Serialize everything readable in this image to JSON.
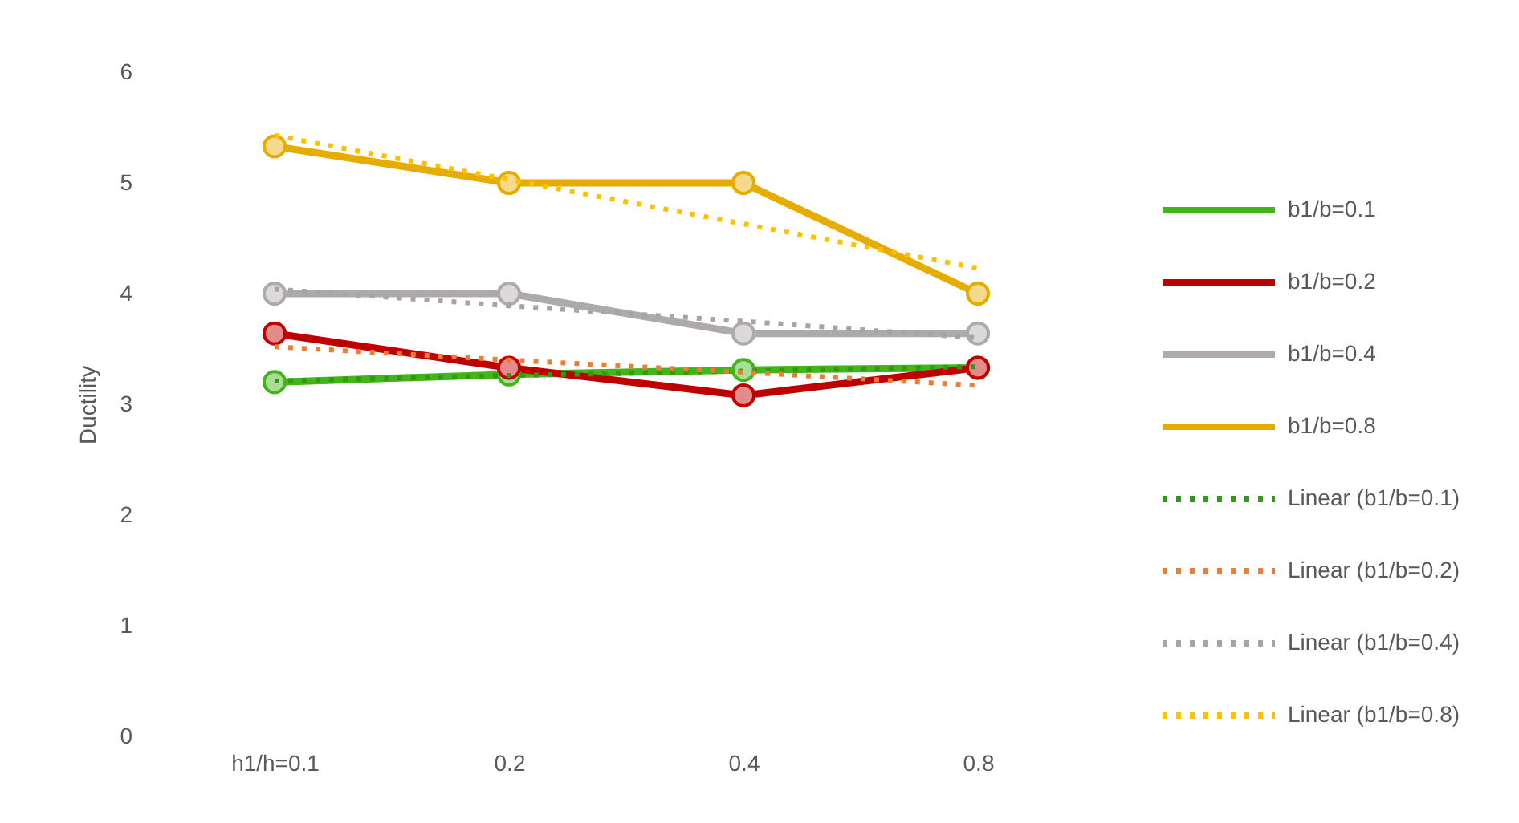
{
  "chart_data": {
    "type": "line",
    "ylabel": "Ductility",
    "categories": [
      "h1/h=0.1",
      "0.2",
      "0.4",
      "0.8"
    ],
    "ylim": [
      0,
      6
    ],
    "yticks": [
      0,
      1,
      2,
      3,
      4,
      5,
      6
    ],
    "legend": "right",
    "series": [
      {
        "name": "b1/b=0.1",
        "color": "#43b51a",
        "marker": "circle",
        "line_style": "solid",
        "values": [
          3.2,
          3.27,
          3.31,
          3.33
        ]
      },
      {
        "name": "b1/b=0.2",
        "color": "#c00000",
        "marker": "circle",
        "line_style": "solid",
        "values": [
          3.64,
          3.33,
          3.08,
          3.33
        ]
      },
      {
        "name": "b1/b=0.4",
        "color": "#aeaaaa",
        "marker": "circle",
        "line_style": "solid",
        "values": [
          4.0,
          4.0,
          3.64,
          3.64
        ]
      },
      {
        "name": "b1/b=0.8",
        "color": "#e6ad00",
        "marker": "circle",
        "line_style": "solid",
        "values": [
          5.33,
          5.0,
          5.0,
          4.0
        ]
      },
      {
        "name": "Linear (b1/b=0.1)",
        "color": "#2f9a12",
        "marker": "none",
        "line_style": "dotted",
        "values": [
          3.21,
          3.26,
          3.3,
          3.34
        ]
      },
      {
        "name": "Linear (b1/b=0.2)",
        "color": "#ed7d31",
        "marker": "none",
        "line_style": "dotted",
        "values": [
          3.52,
          3.4,
          3.29,
          3.17
        ]
      },
      {
        "name": "Linear (b1/b=0.4)",
        "color": "#a5a5a5",
        "marker": "none",
        "line_style": "dotted",
        "values": [
          4.04,
          3.89,
          3.75,
          3.6
        ]
      },
      {
        "name": "Linear (b1/b=0.8)",
        "color": "#ffc000",
        "marker": "none",
        "line_style": "dotted",
        "values": [
          5.43,
          5.03,
          4.63,
          4.23
        ]
      }
    ]
  }
}
